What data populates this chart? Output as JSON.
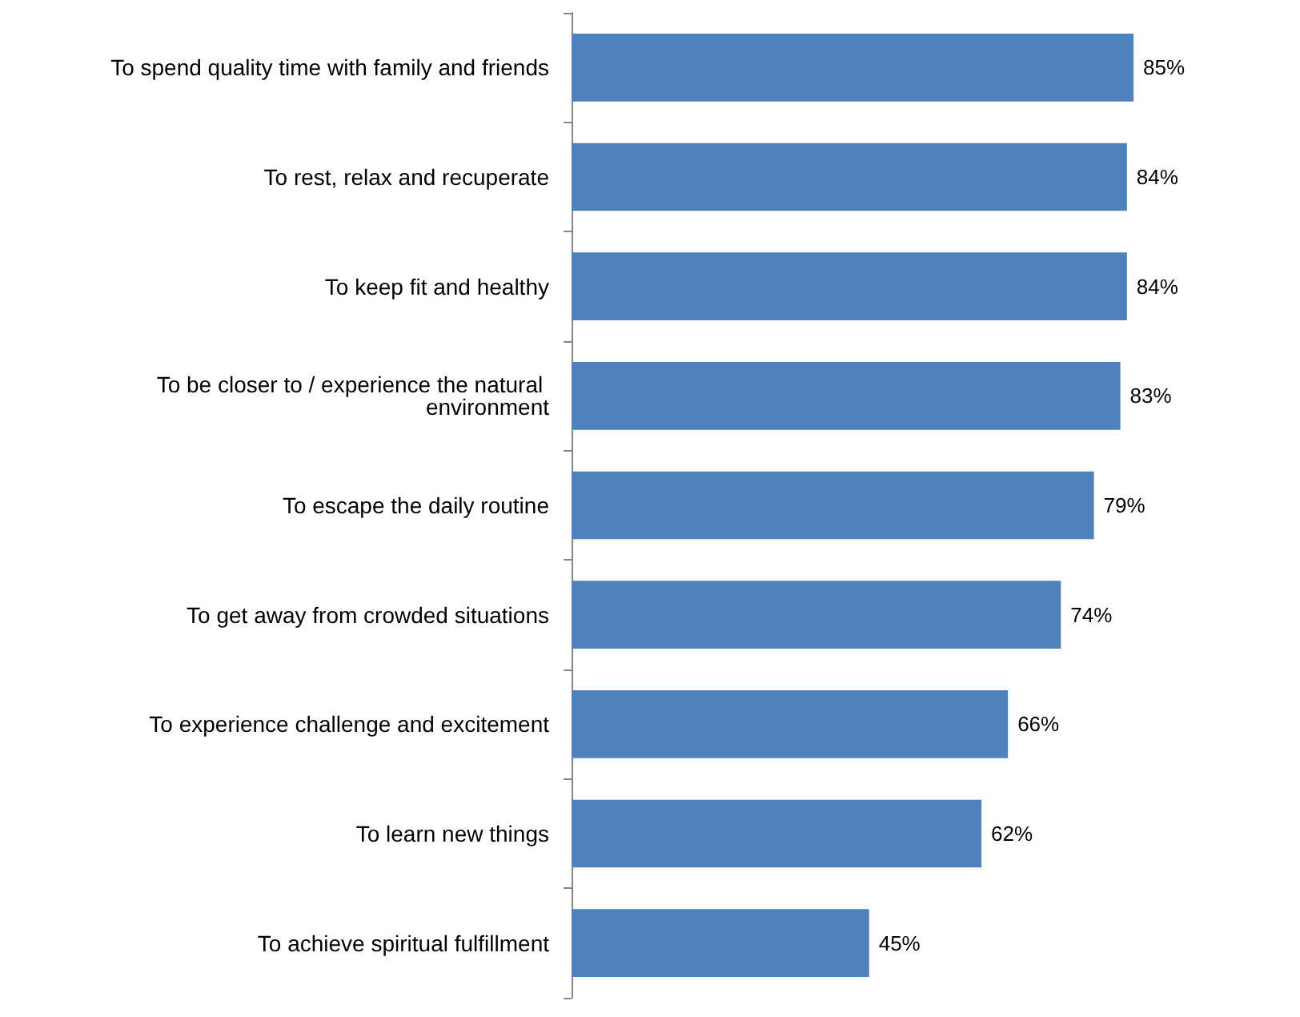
{
  "chart_data": {
    "type": "bar",
    "orientation": "horizontal",
    "categories": [
      "To spend quality time with family and friends",
      "To rest, relax and recuperate",
      "To keep fit and healthy",
      "To be closer to / experience the natural environment",
      "To escape the daily routine",
      "To get away from crowded situations",
      "To experience challenge and excitement",
      "To learn new things",
      "To achieve spiritual fulfillment"
    ],
    "values": [
      85,
      84,
      84,
      83,
      79,
      74,
      66,
      62,
      45
    ],
    "value_labels": [
      "85%",
      "84%",
      "84%",
      "83%",
      "79%",
      "74%",
      "66%",
      "62%",
      "45%"
    ],
    "color": "#4f81bd",
    "tick_labels": "y"
  }
}
